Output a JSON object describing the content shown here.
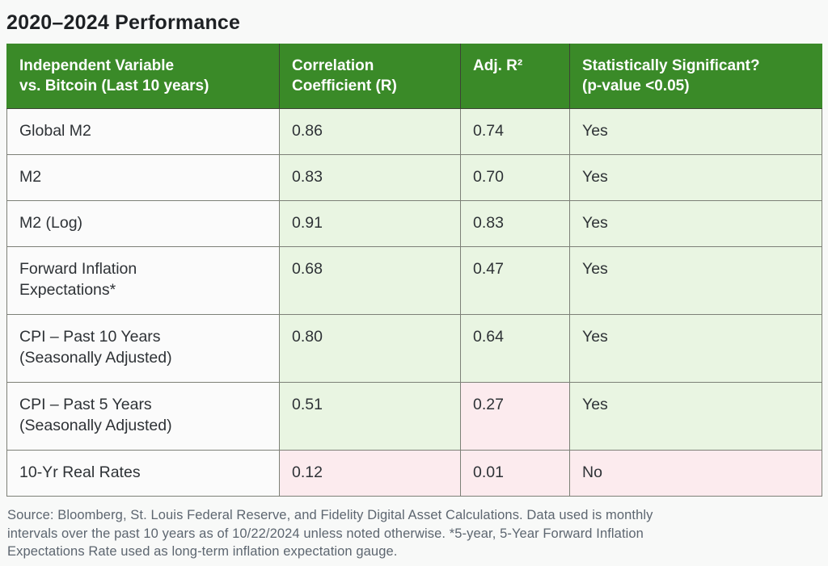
{
  "page": {
    "title": "2020–2024 Performance",
    "source_note_lines": [
      "Source: Bloomberg, St. Louis Federal Reserve, and Fidelity Digital Asset Calculations. Data used is monthly",
      "intervals over the past 10 years as of 10/22/2024 unless noted otherwise. *5-year, 5-Year Forward Inflation",
      "Expectations Rate used as long-term inflation expectation gauge."
    ]
  },
  "colors": {
    "page-bg": "#f8f9f8",
    "header-green": "#3a8a28",
    "cell-green": "#e9f5e2",
    "cell-pink": "#fcebee",
    "cell-white": "#fbfbfb",
    "border-gray": "#7d8077",
    "header-divider": "#3c4335",
    "title-text": "#1e2124",
    "body-text": "#2e3236",
    "footer-text": "#5d6670"
  },
  "table": {
    "headers": [
      "Independent Variable\nvs. Bitcoin (Last 10 years)",
      "Correlation\nCoefficient (R)",
      "Adj. R²",
      "Statistically Significant?\n(p-value <0.05)"
    ],
    "rows": [
      {
        "label": "Global M2",
        "r": "0.86",
        "adj_r2": "0.74",
        "significant": "Yes"
      },
      {
        "label": "M2",
        "r": "0.83",
        "adj_r2": "0.70",
        "significant": "Yes"
      },
      {
        "label": "M2 (Log)",
        "r": "0.91",
        "adj_r2": "0.83",
        "significant": "Yes"
      },
      {
        "label": "Forward Inflation\nExpectations*",
        "r": "0.68",
        "adj_r2": "0.47",
        "significant": "Yes"
      },
      {
        "label": "CPI – Past 10 Years\n(Seasonally Adjusted)",
        "r": "0.80",
        "adj_r2": "0.64",
        "significant": "Yes"
      },
      {
        "label": "CPI – Past 5 Years\n(Seasonally Adjusted)",
        "r": "0.51",
        "adj_r2": "0.27",
        "significant": "Yes"
      },
      {
        "label": "10-Yr Real Rates",
        "r": "0.12",
        "adj_r2": "0.01",
        "significant": "No"
      }
    ]
  },
  "chart_data": {
    "type": "table",
    "title": "2020–2024 Performance",
    "columns": [
      "Independent Variable vs. Bitcoin (Last 10 years)",
      "Correlation Coefficient (R)",
      "Adj. R²",
      "Statistically Significant? (p-value <0.05)"
    ],
    "rows": [
      [
        "Global M2",
        0.86,
        0.74,
        "Yes"
      ],
      [
        "M2",
        0.83,
        0.7,
        "Yes"
      ],
      [
        "M2 (Log)",
        0.91,
        0.83,
        "Yes"
      ],
      [
        "Forward Inflation Expectations*",
        0.68,
        0.47,
        "Yes"
      ],
      [
        "CPI – Past 10 Years (Seasonally Adjusted)",
        0.8,
        0.64,
        "Yes"
      ],
      [
        "CPI – Past 5 Years (Seasonally Adjusted)",
        0.51,
        0.27,
        "Yes"
      ],
      [
        "10-Yr Real Rates",
        0.12,
        0.01,
        "No"
      ]
    ],
    "cell_shading": {
      "green_cells": "all value cells except those listed as pink",
      "pink_cells": [
        "CPI – Past 5 Years (Seasonally Adjusted) → Adj. R² (0.27)",
        "10-Yr Real Rates → Correlation (0.12)",
        "10-Yr Real Rates → Adj. R² (0.01)",
        "10-Yr Real Rates → Statistically Significant (No)"
      ]
    },
    "source": "Source: Bloomberg, St. Louis Federal Reserve, and Fidelity Digital Asset Calculations. Data used is monthly intervals over the past 10 years as of 10/22/2024 unless noted otherwise. *5-year, 5-Year Forward Inflation Expectations Rate used as long-term inflation expectation gauge."
  }
}
